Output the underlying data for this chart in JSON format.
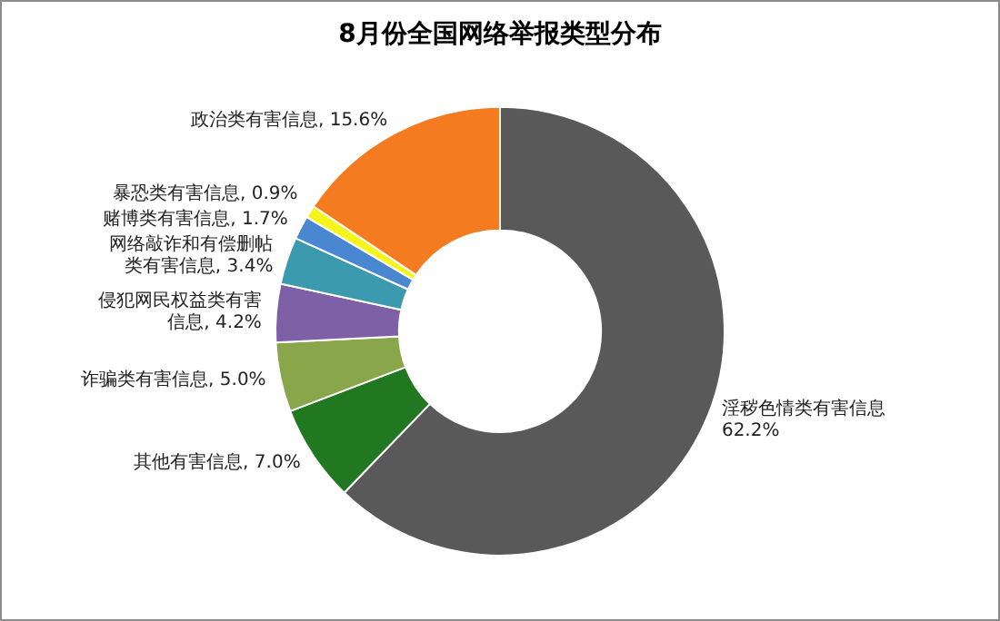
{
  "chart_data": {
    "type": "donut",
    "title": "8月份全国网络举报类型分布",
    "categories": [
      "淫秽色情类有害信息",
      "其他有害信息",
      "诈骗类有害信息",
      "侵犯网民权益类有害信息",
      "网络敲诈和有偿删帖类有害信息",
      "赌博类有害信息",
      "暴恐类有害信息",
      "政治类有害信息"
    ],
    "values": [
      62.2,
      7.0,
      5.0,
      4.2,
      3.4,
      1.7,
      0.9,
      15.6
    ],
    "value_labels": [
      "62.2%",
      "7.0%",
      "5.0%",
      "4.2%",
      "3.4%",
      "1.7%",
      "0.9%",
      "15.6%"
    ],
    "colors": [
      "#595959",
      "#217821",
      "#8aa64a",
      "#7e60a6",
      "#3b9aae",
      "#4a87d1",
      "#f7f41c",
      "#f47b20"
    ],
    "legend": false
  }
}
